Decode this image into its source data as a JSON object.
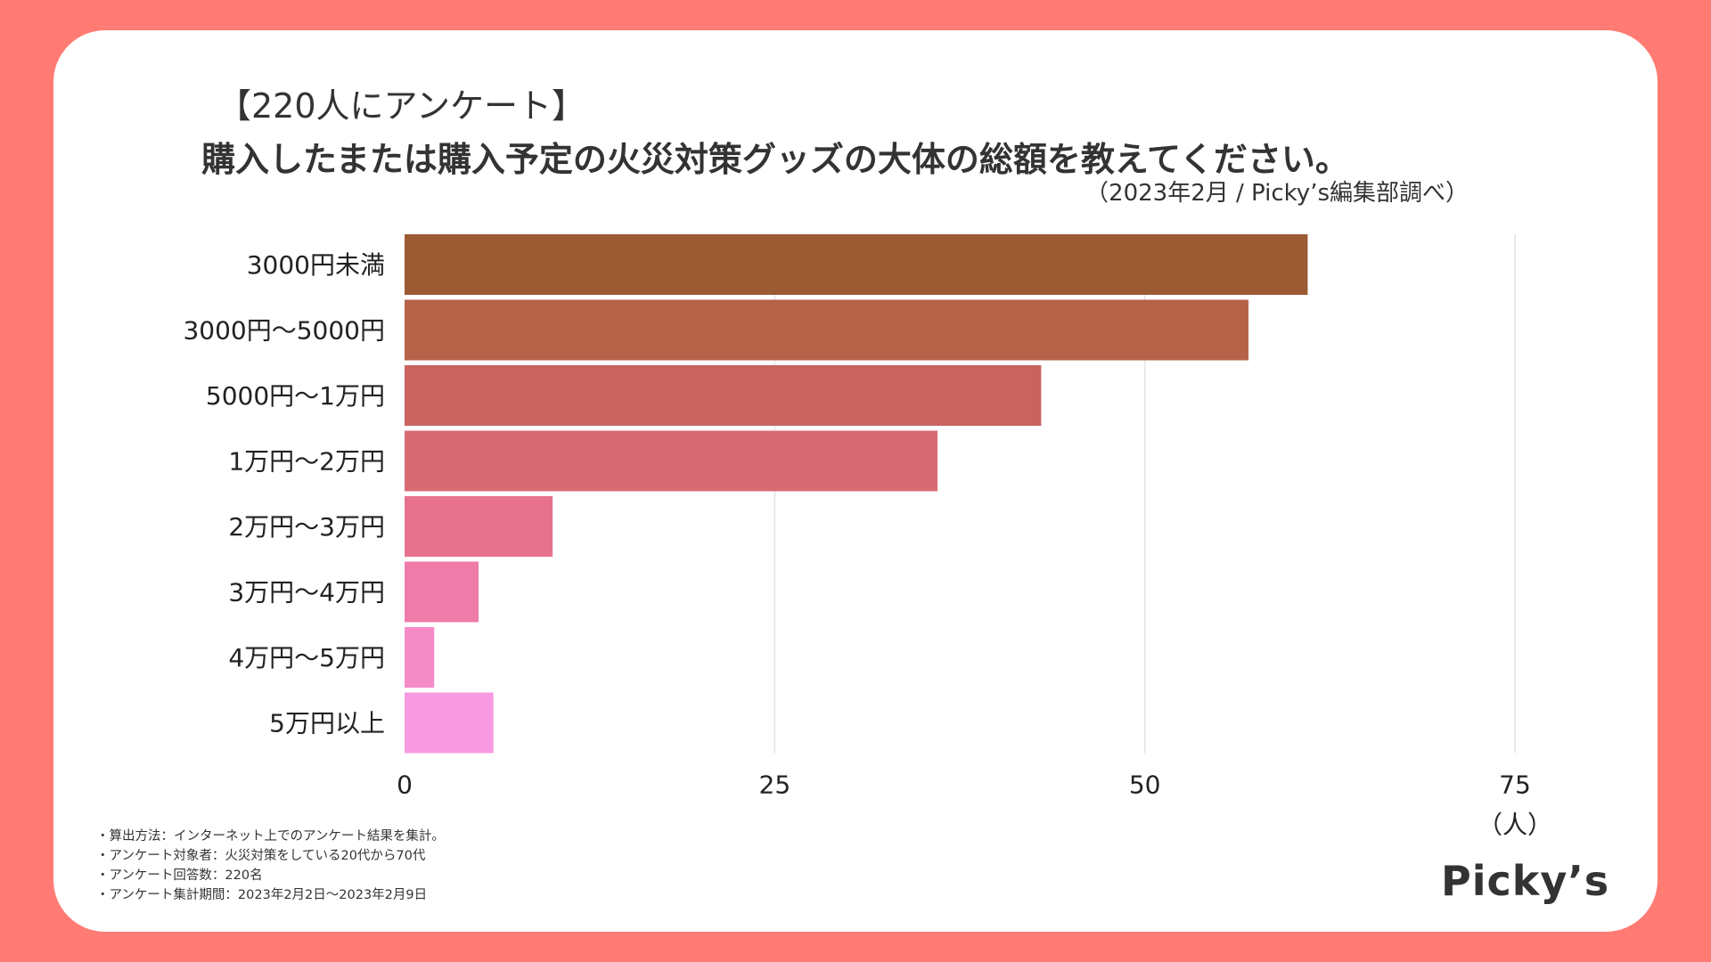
{
  "title_line1": "【220人にアンケート】",
  "title_line2": "購入したまたは購入予定の火災対策グッズの大体の総額を教えてください。",
  "source": "（2023年2月 / Picky’s編集部調べ）",
  "notes": [
    "算出方法：インターネット上でのアンケート結果を集計。",
    "アンケート対象者：火災対策をしている20代から70代",
    "アンケート回答数：220名",
    "アンケート集計期間：2023年2月2日〜2023年2月9日"
  ],
  "logo": "Picky’s",
  "colors": {
    "background": "#FF7B74",
    "card": "#FFFFFF",
    "grid": "#E4E4E4"
  },
  "chart_data": {
    "type": "bar",
    "orientation": "horizontal",
    "categories": [
      "3000円未満",
      "3000円〜5000円",
      "5000円〜1万円",
      "1万円〜2万円",
      "2万円〜3万円",
      "3万円〜4万円",
      "4万円〜5万円",
      "5万円以上"
    ],
    "values": [
      61,
      57,
      43,
      36,
      10,
      5,
      2,
      6
    ],
    "bar_colors": [
      "#9C5A33",
      "#B66249",
      "#C8635E",
      "#D86A74",
      "#E7728F",
      "#EF7BA9",
      "#F48BC7",
      "#F79AE2"
    ],
    "xlim": [
      0,
      75
    ],
    "xticks": [
      0,
      25,
      50,
      75
    ],
    "xunit": "（人）",
    "grid": true
  }
}
